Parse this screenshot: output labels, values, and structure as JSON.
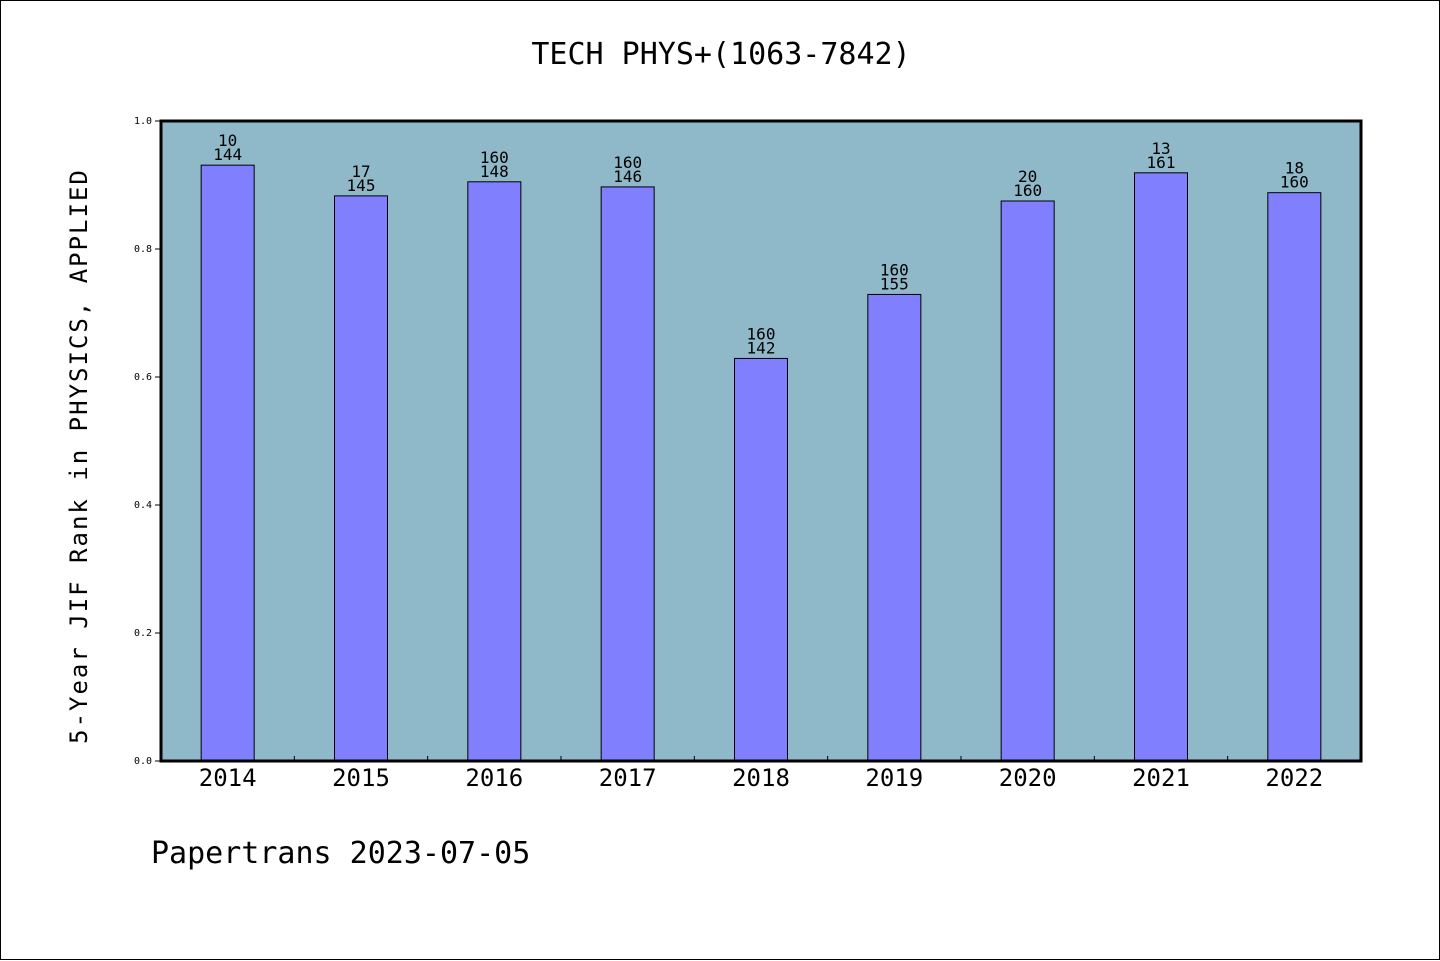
{
  "chart_data": {
    "type": "bar",
    "title": "TECH PHYS+(1063-7842)",
    "xlabel": "",
    "ylabel": "5-Year JIF Rank in PHYSICS, APPLIED",
    "ylim": [
      0,
      1.0
    ],
    "yticks": [
      "0.0",
      "0.2",
      "0.4",
      "0.6",
      "0.8",
      "1.0"
    ],
    "categories": [
      "2014",
      "2015",
      "2016",
      "2017",
      "2018",
      "2019",
      "2020",
      "2021",
      "2022"
    ],
    "values": [
      0.931,
      0.883,
      0.905,
      0.897,
      0.629,
      0.729,
      0.875,
      0.919,
      0.888
    ],
    "labels_top": [
      "10",
      "17",
      "160",
      "160",
      "160",
      "160",
      "20",
      "13",
      "18"
    ],
    "labels_bottom": [
      "144",
      "145",
      "148",
      "146",
      "142",
      "155",
      "160",
      "161",
      "160"
    ],
    "colors": {
      "plot_bg": "#8fb8c8",
      "bar": "#8080ff",
      "edge": "#000000"
    }
  },
  "footer": "Papertrans 2023-07-05"
}
